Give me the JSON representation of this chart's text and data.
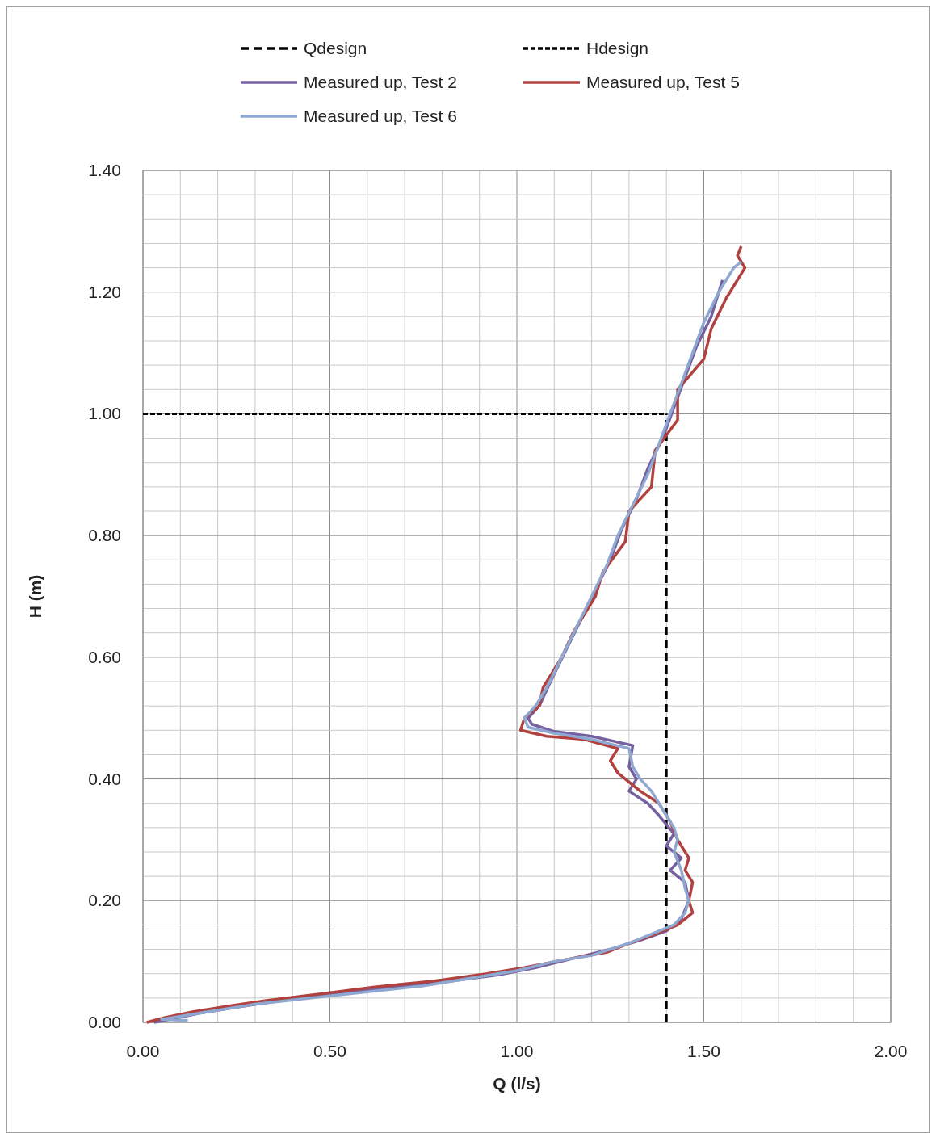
{
  "chart_data": {
    "type": "line",
    "xlabel": "Q (l/s)",
    "ylabel": "H (m)",
    "xlim": [
      0,
      2
    ],
    "ylim": [
      0,
      1.4
    ],
    "xticks": [
      {
        "value": 0,
        "label": "0.00"
      },
      {
        "value": 0.1,
        "label": null
      },
      {
        "value": 0.2,
        "label": null
      },
      {
        "value": 0.3,
        "label": null
      },
      {
        "value": 0.4,
        "label": null
      },
      {
        "value": 0.5,
        "label": "0.50"
      },
      {
        "value": 0.6,
        "label": null
      },
      {
        "value": 0.7,
        "label": null
      },
      {
        "value": 0.8,
        "label": null
      },
      {
        "value": 0.9,
        "label": null
      },
      {
        "value": 1,
        "label": "1.00"
      },
      {
        "value": 1.1,
        "label": null
      },
      {
        "value": 1.2,
        "label": null
      },
      {
        "value": 1.3,
        "label": null
      },
      {
        "value": 1.4,
        "label": null
      },
      {
        "value": 1.5,
        "label": "1.50"
      },
      {
        "value": 1.6,
        "label": null
      },
      {
        "value": 1.7,
        "label": null
      },
      {
        "value": 1.8,
        "label": null
      },
      {
        "value": 1.9,
        "label": null
      },
      {
        "value": 2,
        "label": "2.00"
      }
    ],
    "yticks": [
      {
        "value": 0,
        "label": "0.00"
      },
      {
        "value": 0.04,
        "label": null
      },
      {
        "value": 0.08,
        "label": null
      },
      {
        "value": 0.12,
        "label": null
      },
      {
        "value": 0.16,
        "label": null
      },
      {
        "value": 0.2,
        "label": "0.20"
      },
      {
        "value": 0.24,
        "label": null
      },
      {
        "value": 0.28,
        "label": null
      },
      {
        "value": 0.32,
        "label": null
      },
      {
        "value": 0.36,
        "label": null
      },
      {
        "value": 0.4,
        "label": "0.40"
      },
      {
        "value": 0.44,
        "label": null
      },
      {
        "value": 0.48,
        "label": null
      },
      {
        "value": 0.52,
        "label": null
      },
      {
        "value": 0.56,
        "label": null
      },
      {
        "value": 0.6,
        "label": "0.60"
      },
      {
        "value": 0.64,
        "label": null
      },
      {
        "value": 0.68,
        "label": null
      },
      {
        "value": 0.72,
        "label": null
      },
      {
        "value": 0.76,
        "label": null
      },
      {
        "value": 0.8,
        "label": "0.80"
      },
      {
        "value": 0.84,
        "label": null
      },
      {
        "value": 0.88,
        "label": null
      },
      {
        "value": 0.92,
        "label": null
      },
      {
        "value": 0.96,
        "label": null
      },
      {
        "value": 1,
        "label": "1.00"
      },
      {
        "value": 1.04,
        "label": null
      },
      {
        "value": 1.08,
        "label": null
      },
      {
        "value": 1.12,
        "label": null
      },
      {
        "value": 1.16,
        "label": null
      },
      {
        "value": 1.2,
        "label": "1.20"
      },
      {
        "value": 1.24,
        "label": null
      },
      {
        "value": 1.28,
        "label": null
      },
      {
        "value": 1.32,
        "label": null
      },
      {
        "value": 1.36,
        "label": null
      },
      {
        "value": 1.4,
        "label": "1.40"
      }
    ],
    "grid": true,
    "legend": "top",
    "marker": "none",
    "series": [
      {
        "name": "Qdesign",
        "color": "#000000",
        "line_style": "dashed",
        "x": [
          1.4,
          1.4
        ],
        "values": [
          0,
          1.0
        ]
      },
      {
        "name": "Hdesign",
        "color": "#000000",
        "line_style": "dotted",
        "x": [
          0,
          1.4
        ],
        "values": [
          1.0,
          1.0
        ]
      },
      {
        "name": "Measured up, Test 2",
        "color": "#7560a0",
        "line_style": "solid",
        "x": [
          0.03,
          0.08,
          0.15,
          0.25,
          0.35,
          0.5,
          0.65,
          0.8,
          0.95,
          1.05,
          1.15,
          1.25,
          1.33,
          1.4,
          1.44,
          1.46,
          1.45,
          1.41,
          1.44,
          1.4,
          1.42,
          1.38,
          1.35,
          1.3,
          1.32,
          1.3,
          1.31,
          1.2,
          1.1,
          1.04,
          1.03,
          1.06,
          1.09,
          1.13,
          1.17,
          1.21,
          1.25,
          1.28,
          1.32,
          1.35,
          1.39,
          1.42,
          1.45,
          1.48,
          1.52,
          1.55
        ],
        "values": [
          0,
          0.006,
          0.015,
          0.025,
          0.034,
          0.045,
          0.056,
          0.066,
          0.078,
          0.09,
          0.105,
          0.12,
          0.135,
          0.15,
          0.17,
          0.2,
          0.23,
          0.25,
          0.27,
          0.29,
          0.31,
          0.34,
          0.36,
          0.38,
          0.4,
          0.42,
          0.455,
          0.47,
          0.478,
          0.49,
          0.5,
          0.52,
          0.56,
          0.61,
          0.66,
          0.71,
          0.76,
          0.81,
          0.86,
          0.91,
          0.96,
          1.01,
          1.06,
          1.11,
          1.16,
          1.22
        ]
      },
      {
        "name": "Measured up, Test 5",
        "color": "#b0413e",
        "line_style": "solid",
        "x": [
          0.01,
          0.06,
          0.13,
          0.23,
          0.33,
          0.48,
          0.62,
          0.78,
          0.92,
          1.02,
          1.12,
          1.24,
          1.3,
          1.37,
          1.43,
          1.47,
          1.46,
          1.47,
          1.45,
          1.46,
          1.43,
          1.41,
          1.38,
          1.33,
          1.27,
          1.25,
          1.27,
          1.18,
          1.08,
          1.01,
          1.02,
          1.06,
          1.07,
          1.12,
          1.15,
          1.21,
          1.23,
          1.29,
          1.3,
          1.36,
          1.37,
          1.43,
          1.43,
          1.5,
          1.52,
          1.56,
          1.61,
          1.59,
          1.6
        ],
        "values": [
          0,
          0.008,
          0.017,
          0.027,
          0.036,
          0.047,
          0.058,
          0.068,
          0.08,
          0.09,
          0.102,
          0.115,
          0.13,
          0.145,
          0.16,
          0.18,
          0.2,
          0.23,
          0.25,
          0.27,
          0.3,
          0.33,
          0.36,
          0.38,
          0.41,
          0.43,
          0.45,
          0.465,
          0.47,
          0.48,
          0.5,
          0.52,
          0.55,
          0.6,
          0.64,
          0.7,
          0.74,
          0.79,
          0.84,
          0.88,
          0.94,
          0.99,
          1.04,
          1.09,
          1.14,
          1.19,
          1.24,
          1.26,
          1.275
        ]
      },
      {
        "name": "Measured up, Test 6",
        "color": "#8fa8d2",
        "line_style": "solid",
        "x": [
          0.12,
          0.05,
          0.1,
          0.2,
          0.3,
          0.45,
          0.6,
          0.75,
          0.9,
          1.0,
          1.1,
          1.2,
          1.3,
          1.38,
          1.42,
          1.45,
          1.46,
          1.45,
          1.44,
          1.42,
          1.43,
          1.42,
          1.39,
          1.36,
          1.33,
          1.31,
          1.3,
          1.2,
          1.1,
          1.03,
          1.02,
          1.05,
          1.08,
          1.12,
          1.16,
          1.2,
          1.24,
          1.27,
          1.31,
          1.35,
          1.38,
          1.41,
          1.44,
          1.47,
          1.5,
          1.54,
          1.58,
          1.6
        ],
        "values": [
          0.003,
          0.005,
          0.01,
          0.02,
          0.03,
          0.04,
          0.05,
          0.06,
          0.075,
          0.085,
          0.1,
          0.11,
          0.13,
          0.15,
          0.16,
          0.18,
          0.2,
          0.22,
          0.25,
          0.28,
          0.3,
          0.32,
          0.35,
          0.38,
          0.4,
          0.42,
          0.45,
          0.465,
          0.475,
          0.485,
          0.5,
          0.52,
          0.55,
          0.6,
          0.65,
          0.7,
          0.75,
          0.8,
          0.85,
          0.9,
          0.95,
          1.0,
          1.05,
          1.1,
          1.15,
          1.2,
          1.24,
          1.25
        ]
      }
    ]
  }
}
